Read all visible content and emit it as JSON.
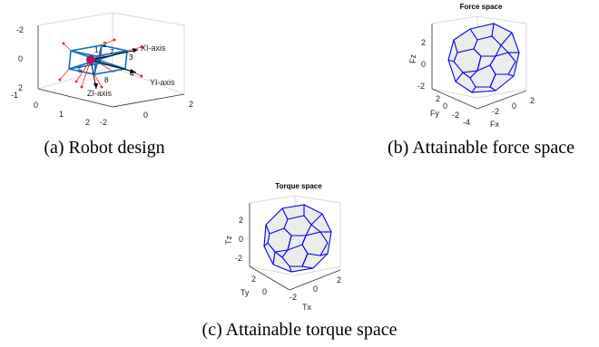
{
  "panels": [
    {
      "id": "a",
      "caption": "(a) Robot design",
      "title": "",
      "z_ticks": [
        "-2",
        "0",
        "2"
      ],
      "left_ticks": [
        "-1",
        "0",
        "1",
        "2"
      ],
      "right_ticks": [
        "-2",
        "0",
        "2"
      ],
      "annotations": {
        "xi_axis": "XI-axis",
        "yi_axis": "YI-axis",
        "zi_axis": "ZI-axis",
        "cable_numbers": [
          "1",
          "2",
          "3",
          "4",
          "5",
          "6",
          "7",
          "8"
        ]
      }
    },
    {
      "id": "b",
      "caption": "(b) Attainable force space",
      "title": "Force space",
      "z_label": "Fz",
      "x_label": "Fx",
      "y_label": "Fy",
      "z_ticks": [
        "2",
        "0",
        "-2"
      ],
      "y_ticks": [
        "-4",
        "-2",
        "0",
        "2"
      ],
      "x_ticks": [
        "-2",
        "0",
        "2"
      ]
    },
    {
      "id": "c",
      "caption": "(c) Attainable torque space",
      "title": "Torque space",
      "z_label": "Tz",
      "x_label": "Tx",
      "y_label": "Ty",
      "z_ticks": [
        "2",
        "0",
        "-2"
      ],
      "y_ticks": [
        "0",
        "2"
      ],
      "x_ticks": [
        "-2",
        "0",
        "2"
      ]
    }
  ],
  "colors": {
    "frame": "#0b6fc4",
    "cable": "#e03030",
    "mesh": "#0000ee",
    "mesh_fill": "#e8e8e8",
    "grid": "#d0d0d0"
  }
}
